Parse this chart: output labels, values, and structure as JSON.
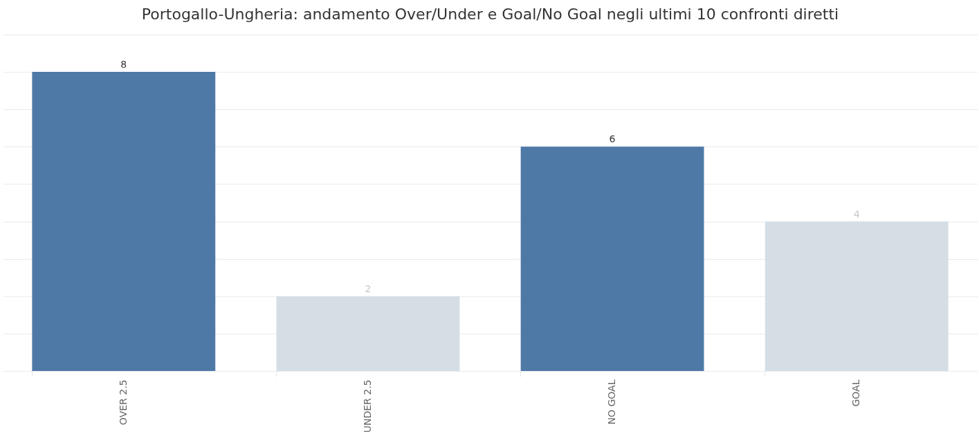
{
  "chart_data": {
    "type": "bar",
    "title": "Portogallo-Ungheria: andamento Over/Under e Goal/No Goal negli ultimi 10 confronti diretti",
    "categories": [
      "OVER 2.5",
      "UNDER 2.5",
      "NO GOAL",
      "GOAL"
    ],
    "values": [
      8,
      2,
      6,
      4
    ],
    "colors": [
      "#4e79a7",
      "#d5dde5",
      "#4e79a7",
      "#d5dde5"
    ],
    "ylim": [
      0,
      9
    ],
    "yticks": [
      {
        "value": 0,
        "label": null
      },
      {
        "value": 1,
        "label": null
      },
      {
        "value": 2,
        "label": null
      },
      {
        "value": 3,
        "label": null
      },
      {
        "value": 4,
        "label": null
      },
      {
        "value": 5,
        "label": null
      },
      {
        "value": 6,
        "label": null
      },
      {
        "value": 7,
        "label": null
      },
      {
        "value": 8,
        "label": null
      },
      {
        "value": 9,
        "label": null
      }
    ],
    "grid": "y",
    "data_labels": true
  }
}
